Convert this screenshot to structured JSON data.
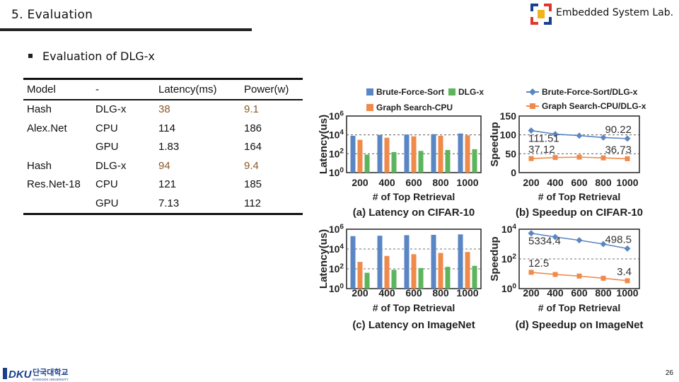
{
  "header": {
    "title": "5. Evaluation",
    "lab_name": "Embedded System Lab."
  },
  "bullet": "Evaluation of DLG-x",
  "table": {
    "headers": [
      "Model",
      "-",
      "Latency(ms)",
      "Power(w)"
    ],
    "rows": [
      {
        "model": "Hash",
        "device": "DLG-x",
        "latency": "38",
        "power": "9.1"
      },
      {
        "model": "Alex.Net",
        "device": "CPU",
        "latency": "114",
        "power": "186"
      },
      {
        "model": "",
        "device": "GPU",
        "latency": "1.83",
        "power": "164"
      },
      {
        "model": "Hash",
        "device": "DLG-x",
        "latency": "94",
        "power": "9.4"
      },
      {
        "model": "Res.Net-18",
        "device": "CPU",
        "latency": "121",
        "power": "185"
      },
      {
        "model": "",
        "device": "GPU",
        "latency": "7.13",
        "power": "112"
      }
    ]
  },
  "footer": {
    "page_number": "26",
    "university": "단국대학교",
    "university_sub": "DANKOOK UNIVERSITY",
    "logo_text": "DKU"
  },
  "colors": {
    "brute": "#5b86c4",
    "graph": "#f08a4b",
    "dlgx": "#5cb55c",
    "accent_text": "#8a5a28"
  },
  "chart_data": [
    {
      "type": "bar",
      "caption": "(a) Latency on CIFAR-10",
      "xlabel": "# of Top Retrieval",
      "ylabel": "Latency(us)",
      "yscale": "log",
      "ylim": [
        1,
        1000000
      ],
      "yticks": [
        "10^0",
        "10^2",
        "10^4",
        "10^6"
      ],
      "categories": [
        "200",
        "400",
        "600",
        "800",
        "1000"
      ],
      "series": [
        {
          "name": "Brute-Force-Sort",
          "values": [
            8000,
            10000,
            11000,
            12000,
            14000
          ]
        },
        {
          "name": "Graph Search-CPU",
          "values": [
            3000,
            5000,
            7000,
            8000,
            9000
          ]
        },
        {
          "name": "DLG-x",
          "values": [
            80,
            150,
            200,
            250,
            300
          ]
        }
      ]
    },
    {
      "type": "line",
      "caption": "(b) Speedup on CIFAR-10",
      "xlabel": "# of Top Retrieval",
      "ylabel": "Speedup",
      "ylim": [
        0,
        150
      ],
      "yticks": [
        "0",
        "50",
        "100",
        "150"
      ],
      "categories": [
        "200",
        "400",
        "600",
        "800",
        "1000"
      ],
      "series": [
        {
          "name": "Brute-Force-Sort/DLG-x",
          "values": [
            111.51,
            102,
            98,
            93,
            90.22
          ]
        },
        {
          "name": "Graph Search-CPU/DLG-x",
          "values": [
            37.12,
            40,
            41,
            39,
            36.73
          ]
        }
      ],
      "annotations": [
        "111.51",
        "90.22",
        "37.12",
        "36.73"
      ]
    },
    {
      "type": "bar",
      "caption": "(c) Latency on ImageNet",
      "xlabel": "# of Top Retrieval",
      "ylabel": "Latency(us)",
      "yscale": "log",
      "ylim": [
        1,
        1000000
      ],
      "yticks": [
        "10^0",
        "10^2",
        "10^4",
        "10^6"
      ],
      "categories": [
        "200",
        "400",
        "600",
        "800",
        "1000"
      ],
      "series": [
        {
          "name": "Brute-Force-Sort",
          "values": [
            200000,
            220000,
            250000,
            270000,
            300000
          ]
        },
        {
          "name": "Graph Search-CPU",
          "values": [
            500,
            2000,
            3000,
            4000,
            5000
          ]
        },
        {
          "name": "DLG-x",
          "values": [
            40,
            80,
            120,
            160,
            200
          ]
        }
      ]
    },
    {
      "type": "line",
      "caption": "(d) Speedup on ImageNet",
      "xlabel": "# of Top Retrieval",
      "ylabel": "Speedup",
      "yscale": "log",
      "ylim": [
        1,
        10000
      ],
      "yticks": [
        "10^0",
        "10^2",
        "10^4"
      ],
      "categories": [
        "200",
        "400",
        "600",
        "800",
        "1000"
      ],
      "series": [
        {
          "name": "Brute-Force-Sort/DLG-x",
          "values": [
            5334.4,
            3000,
            1800,
            1000,
            498.5
          ]
        },
        {
          "name": "Graph Search-CPU/DLG-x",
          "values": [
            12.5,
            9,
            7,
            5,
            3.4
          ]
        }
      ],
      "annotations": [
        "5334.4",
        "498.5",
        "12.5",
        "3.4"
      ]
    }
  ]
}
